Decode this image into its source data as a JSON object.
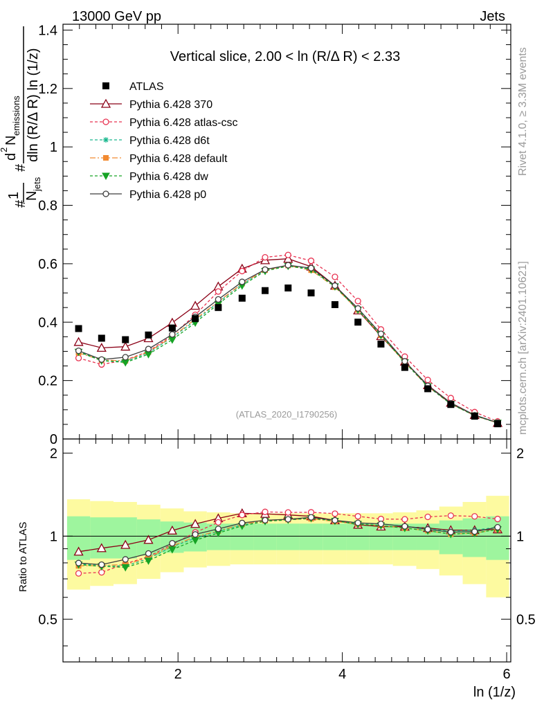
{
  "header": {
    "left": "13000 GeV pp",
    "right": "Jets"
  },
  "side": {
    "rivet": "Rivet 4.1.0, ≥ 3.3M events",
    "mcplots": "mcplots.cern.ch [arXiv:2401.10621]"
  },
  "chart_data": {
    "type": "line",
    "title": "Vertical slice, 2.00 < ln (R/Δ R) < 2.33",
    "watermark": "(ATLAS_2020_I1790256)",
    "xlabel": "ln (1/z)",
    "ylabel": "#frac{1}{N_{jets}} #frac{d² N_{emissions}}{dln (R/Δ R) ln (1/z)}",
    "ylabel_parts": {
      "one": "1",
      "njets": "N",
      "njets_sub": "jets",
      "d2": "d",
      "d2_sup": "2",
      "nemis": "N",
      "nemis_sub": "emissions",
      "denom": "dln (R/Δ R) ln (1/z)",
      "hash": "#"
    },
    "ratio_ylabel": "Ratio to ATLAS",
    "xlim": [
      0.6,
      6.05
    ],
    "ylim": [
      0,
      1.42
    ],
    "ratio_ylim": [
      0.35,
      2.25
    ],
    "x_ticks": [
      "2",
      "4",
      "6"
    ],
    "y_ticks": [
      "0",
      "0.2",
      "0.4",
      "0.6",
      "0.8",
      "1",
      "1.2",
      "1.4"
    ],
    "ratio_ticks": [
      "0.5",
      "1",
      "2"
    ],
    "x": [
      0.79,
      1.07,
      1.36,
      1.64,
      1.93,
      2.21,
      2.49,
      2.78,
      3.06,
      3.34,
      3.62,
      3.91,
      4.19,
      4.47,
      4.76,
      5.04,
      5.32,
      5.61,
      5.89
    ],
    "data": {
      "name": "ATLAS",
      "values": [
        0.378,
        0.345,
        0.34,
        0.356,
        0.38,
        0.412,
        0.45,
        0.482,
        0.508,
        0.517,
        0.5,
        0.46,
        0.4,
        0.325,
        0.245,
        0.172,
        0.118,
        0.078,
        0.052
      ]
    },
    "band_inner": [
      0.18,
      0.17,
      0.17,
      0.15,
      0.13,
      0.12,
      0.11,
      0.11,
      0.11,
      0.11,
      0.11,
      0.11,
      0.11,
      0.11,
      0.11,
      0.11,
      0.14,
      0.16,
      0.18
    ],
    "band_outer": [
      0.36,
      0.34,
      0.33,
      0.3,
      0.26,
      0.23,
      0.22,
      0.21,
      0.21,
      0.21,
      0.21,
      0.21,
      0.21,
      0.21,
      0.22,
      0.24,
      0.28,
      0.33,
      0.4
    ],
    "series": [
      {
        "name": "Pythia 6.428 370",
        "color": "#8b0016",
        "dash": "",
        "marker": "triangle-open",
        "values": [
          0.332,
          0.312,
          0.316,
          0.345,
          0.398,
          0.456,
          0.522,
          0.583,
          0.612,
          0.617,
          0.59,
          0.525,
          0.44,
          0.352,
          0.265,
          0.184,
          0.124,
          0.082,
          0.055
        ]
      },
      {
        "name": "Pythia 6.428 atlas-csc",
        "color": "#e8304f",
        "dash": "4,3",
        "marker": "circle-open",
        "values": [
          0.277,
          0.255,
          0.27,
          0.3,
          0.355,
          0.425,
          0.505,
          0.575,
          0.622,
          0.63,
          0.61,
          0.555,
          0.472,
          0.375,
          0.282,
          0.202,
          0.14,
          0.092,
          0.06
        ]
      },
      {
        "name": "Pythia 6.428 d6t",
        "color": "#1bb88f",
        "dash": "4,3",
        "marker": "asterisk",
        "values": [
          0.3,
          0.27,
          0.265,
          0.295,
          0.348,
          0.405,
          0.468,
          0.53,
          0.578,
          0.595,
          0.583,
          0.525,
          0.445,
          0.36,
          0.266,
          0.183,
          0.123,
          0.082,
          0.056
        ]
      },
      {
        "name": "Pythia 6.428 default",
        "color": "#f28a31",
        "dash": "8,3,2,3",
        "marker": "square-filled",
        "values": [
          0.295,
          0.27,
          0.268,
          0.298,
          0.35,
          0.41,
          0.47,
          0.532,
          0.578,
          0.594,
          0.578,
          0.52,
          0.442,
          0.355,
          0.262,
          0.18,
          0.12,
          0.08,
          0.055
        ]
      },
      {
        "name": "Pythia 6.428 dw",
        "color": "#16a325",
        "dash": "4,3",
        "marker": "triangle-down-filled",
        "values": [
          0.298,
          0.268,
          0.262,
          0.29,
          0.34,
          0.398,
          0.462,
          0.525,
          0.575,
          0.592,
          0.58,
          0.522,
          0.442,
          0.355,
          0.262,
          0.18,
          0.12,
          0.08,
          0.055
        ]
      },
      {
        "name": "Pythia 6.428 p0",
        "color": "#3d3d3d",
        "dash": "",
        "marker": "circle-open",
        "values": [
          0.302,
          0.272,
          0.28,
          0.308,
          0.358,
          0.418,
          0.478,
          0.538,
          0.58,
          0.595,
          0.585,
          0.525,
          0.447,
          0.36,
          0.266,
          0.182,
          0.122,
          0.081,
          0.056
        ]
      }
    ]
  }
}
